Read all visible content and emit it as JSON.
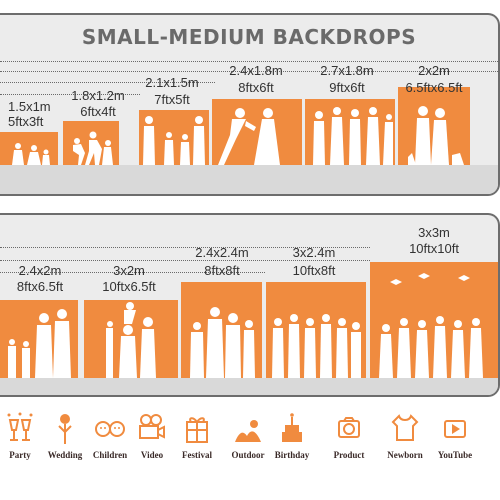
{
  "title": "SMALL-MEDIUM BACKDROPS",
  "colors": {
    "accent": "#f08b3f",
    "panel": "#ececec",
    "floor": "#d9d9d9"
  },
  "row1": [
    {
      "metric": "1.5x1m",
      "imperial": "5ftx3ft"
    },
    {
      "metric": "1.8x1.2m",
      "imperial": "6ftx4ft"
    },
    {
      "metric": "2.1x1.5m",
      "imperial": "7ftx5ft"
    },
    {
      "metric": "2.4x1.8m",
      "imperial": "8ftx6ft"
    },
    {
      "metric": "2.7x1.8m",
      "imperial": "9ftx6ft"
    },
    {
      "metric": "2x2m",
      "imperial": "6.5ftx6.5ft"
    }
  ],
  "row2": [
    {
      "metric": "2.4x2m",
      "imperial": "8ftx6.5ft"
    },
    {
      "metric": "3x2m",
      "imperial": "10ftx6.5ft"
    },
    {
      "metric": "2.4x2.4m",
      "imperial": "8ftx8ft"
    },
    {
      "metric": "3x2.4m",
      "imperial": "10ftx8ft"
    },
    {
      "metric": "3x3m",
      "imperial": "10ftx10ft"
    }
  ],
  "uses": [
    {
      "label": "Party",
      "icon": "party-glasses-icon"
    },
    {
      "label": "Wedding",
      "icon": "wedding-bouquet-icon"
    },
    {
      "label": "Children",
      "icon": "children-faces-icon"
    },
    {
      "label": "Video",
      "icon": "video-camera-icon"
    },
    {
      "label": "Festival",
      "icon": "festival-gift-icon"
    },
    {
      "label": "Outdoor",
      "icon": "outdoor-landscape-icon"
    },
    {
      "label": "Birthday",
      "icon": "birthday-cake-icon"
    },
    {
      "label": "Product",
      "icon": "product-camera-icon"
    },
    {
      "label": "Newborn",
      "icon": "newborn-onesie-icon"
    },
    {
      "label": "YouTube",
      "icon": "youtube-play-icon"
    }
  ]
}
